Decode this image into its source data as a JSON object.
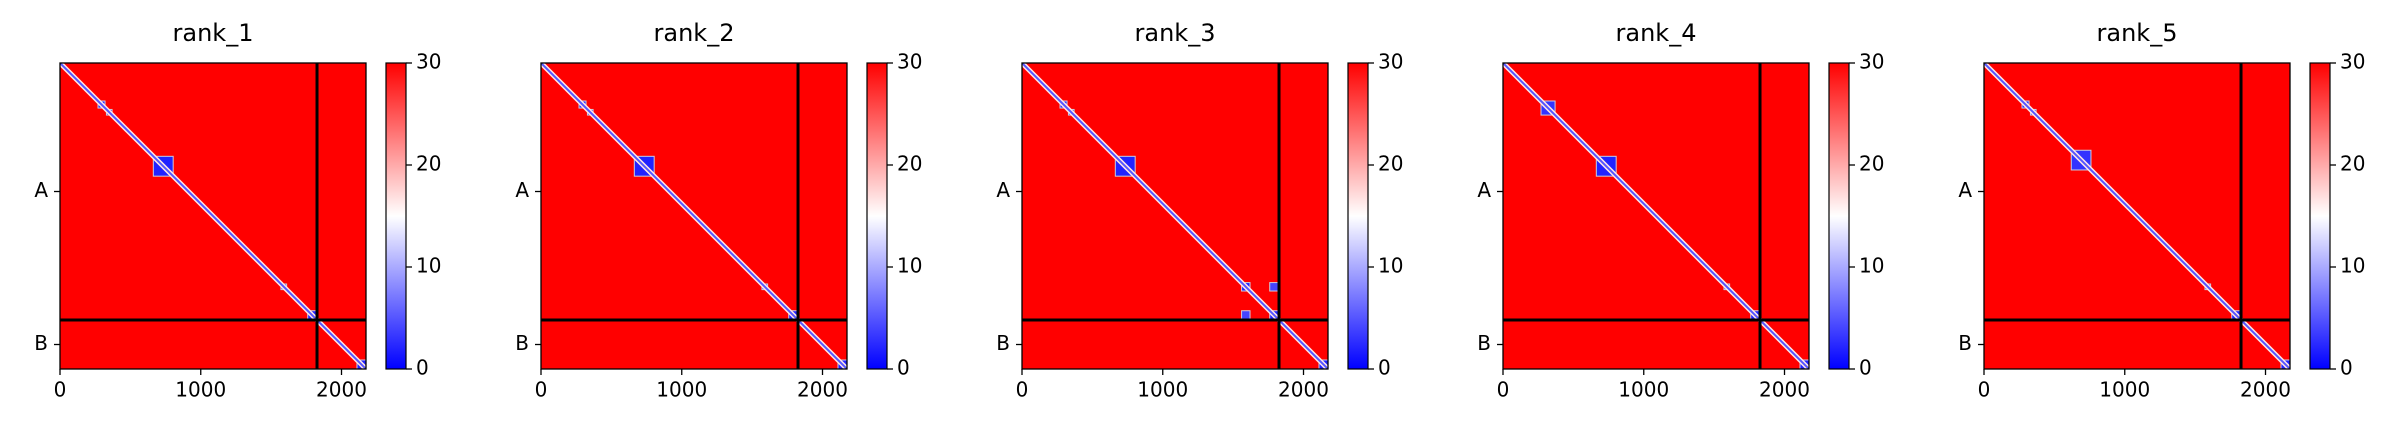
{
  "chart_data": [
    {
      "type": "heatmap",
      "title": "rank_1",
      "xlim": [
        0,
        2174
      ],
      "ylim": [
        2174,
        0
      ],
      "xticks": [
        0,
        1000,
        2000
      ],
      "yticks": [
        {
          "value": 913,
          "label": "A"
        },
        {
          "value": 2000,
          "label": "B"
        }
      ],
      "clim": [
        0,
        30
      ],
      "cticks": [
        0,
        10,
        20,
        30
      ],
      "cmap": [
        "#0000ff",
        "#ffffff",
        "#ff0000"
      ],
      "background_value": 30,
      "diagonal_value": 5,
      "chain_breaks": [
        1826
      ],
      "blocks": [
        {
          "x": [
            270,
            320
          ],
          "y": [
            270,
            320
          ],
          "value": 2
        },
        {
          "x": [
            330,
            370
          ],
          "y": [
            330,
            370
          ],
          "value": 2
        },
        {
          "x": [
            663,
            804
          ],
          "y": [
            663,
            804
          ],
          "value": 2
        },
        {
          "x": [
            1570,
            1610
          ],
          "y": [
            1570,
            1610
          ],
          "value": 2
        },
        {
          "x": [
            1760,
            1826
          ],
          "y": [
            1760,
            1826
          ],
          "value": 2
        },
        {
          "x": [
            2110,
            2174
          ],
          "y": [
            2110,
            2174
          ],
          "value": 2
        }
      ]
    },
    {
      "type": "heatmap",
      "title": "rank_2",
      "xlim": [
        0,
        2174
      ],
      "ylim": [
        2174,
        0
      ],
      "xticks": [
        0,
        1000,
        2000
      ],
      "yticks": [
        {
          "value": 913,
          "label": "A"
        },
        {
          "value": 2000,
          "label": "B"
        }
      ],
      "clim": [
        0,
        30
      ],
      "cticks": [
        0,
        10,
        20,
        30
      ],
      "cmap": [
        "#0000ff",
        "#ffffff",
        "#ff0000"
      ],
      "background_value": 30,
      "diagonal_value": 5,
      "chain_breaks": [
        1826
      ],
      "blocks": [
        {
          "x": [
            270,
            320
          ],
          "y": [
            270,
            320
          ],
          "value": 2
        },
        {
          "x": [
            330,
            370
          ],
          "y": [
            330,
            370
          ],
          "value": 2
        },
        {
          "x": [
            663,
            804
          ],
          "y": [
            663,
            804
          ],
          "value": 2
        },
        {
          "x": [
            1570,
            1610
          ],
          "y": [
            1570,
            1610
          ],
          "value": 2
        },
        {
          "x": [
            1760,
            1826
          ],
          "y": [
            1760,
            1826
          ],
          "value": 2
        },
        {
          "x": [
            2110,
            2174
          ],
          "y": [
            2110,
            2174
          ],
          "value": 2
        }
      ]
    },
    {
      "type": "heatmap",
      "title": "rank_3",
      "xlim": [
        0,
        2174
      ],
      "ylim": [
        2174,
        0
      ],
      "xticks": [
        0,
        1000,
        2000
      ],
      "yticks": [
        {
          "value": 913,
          "label": "A"
        },
        {
          "value": 2000,
          "label": "B"
        }
      ],
      "clim": [
        0,
        30
      ],
      "cticks": [
        0,
        10,
        20,
        30
      ],
      "cmap": [
        "#0000ff",
        "#ffffff",
        "#ff0000"
      ],
      "background_value": 30,
      "diagonal_value": 5,
      "chain_breaks": [
        1826
      ],
      "blocks": [
        {
          "x": [
            270,
            320
          ],
          "y": [
            270,
            320
          ],
          "value": 2
        },
        {
          "x": [
            330,
            370
          ],
          "y": [
            330,
            370
          ],
          "value": 2
        },
        {
          "x": [
            663,
            804
          ],
          "y": [
            663,
            804
          ],
          "value": 2
        },
        {
          "x": [
            1560,
            1620
          ],
          "y": [
            1560,
            1620
          ],
          "value": 2
        },
        {
          "x": [
            1760,
            1826
          ],
          "y": [
            1760,
            1826
          ],
          "value": 2
        },
        {
          "x": [
            1560,
            1620
          ],
          "y": [
            1760,
            1826
          ],
          "value": 4
        },
        {
          "x": [
            1760,
            1826
          ],
          "y": [
            1560,
            1620
          ],
          "value": 4
        },
        {
          "x": [
            2110,
            2174
          ],
          "y": [
            2110,
            2174
          ],
          "value": 2
        }
      ]
    },
    {
      "type": "heatmap",
      "title": "rank_4",
      "xlim": [
        0,
        2174
      ],
      "ylim": [
        2174,
        0
      ],
      "xticks": [
        0,
        1000,
        2000
      ],
      "yticks": [
        {
          "value": 913,
          "label": "A"
        },
        {
          "value": 2000,
          "label": "B"
        }
      ],
      "clim": [
        0,
        30
      ],
      "cticks": [
        0,
        10,
        20,
        30
      ],
      "cmap": [
        "#0000ff",
        "#ffffff",
        "#ff0000"
      ],
      "background_value": 30,
      "diagonal_value": 5,
      "chain_breaks": [
        1826
      ],
      "blocks": [
        {
          "x": [
            270,
            370
          ],
          "y": [
            270,
            370
          ],
          "value": 3
        },
        {
          "x": [
            663,
            804
          ],
          "y": [
            663,
            804
          ],
          "value": 2
        },
        {
          "x": [
            1570,
            1610
          ],
          "y": [
            1570,
            1610
          ],
          "value": 2
        },
        {
          "x": [
            1760,
            1826
          ],
          "y": [
            1760,
            1826
          ],
          "value": 2
        },
        {
          "x": [
            2110,
            2174
          ],
          "y": [
            2110,
            2174
          ],
          "value": 2
        }
      ]
    },
    {
      "type": "heatmap",
      "title": "rank_5",
      "xlim": [
        0,
        2174
      ],
      "ylim": [
        2174,
        0
      ],
      "xticks": [
        0,
        1000,
        2000
      ],
      "yticks": [
        {
          "value": 913,
          "label": "A"
        },
        {
          "value": 2000,
          "label": "B"
        }
      ],
      "clim": [
        0,
        30
      ],
      "cticks": [
        0,
        10,
        20,
        30
      ],
      "cmap": [
        "#0000ff",
        "#ffffff",
        "#ff0000"
      ],
      "background_value": 30,
      "diagonal_value": 5,
      "chain_breaks": [
        1826
      ],
      "blocks": [
        {
          "x": [
            270,
            320
          ],
          "y": [
            270,
            320
          ],
          "value": 2
        },
        {
          "x": [
            330,
            370
          ],
          "y": [
            330,
            370
          ],
          "value": 2
        },
        {
          "x": [
            620,
            760
          ],
          "y": [
            620,
            760
          ],
          "value": 3
        },
        {
          "x": [
            1570,
            1610
          ],
          "y": [
            1570,
            1610
          ],
          "value": 2
        },
        {
          "x": [
            1760,
            1826
          ],
          "y": [
            1760,
            1826
          ],
          "value": 2
        },
        {
          "x": [
            2110,
            2174
          ],
          "y": [
            2110,
            2174
          ],
          "value": 2
        }
      ]
    }
  ]
}
